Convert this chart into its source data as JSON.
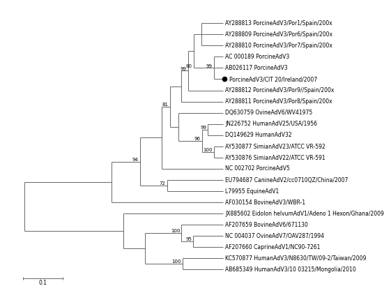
{
  "line_color": "#666666",
  "text_color": "#000000",
  "bg_color": "#ffffff",
  "font_size": 5.5,
  "bootstrap_font_size": 5.0,
  "taxa": [
    "AY288813 PorcineAdV3/Por1/Spain/200x",
    "AY288809 PorcineAdV3/Por6/Spain/200x",
    "AY288810 PorcineAdV3/Por7/Spain/200x",
    "AC 000189 PorcineAdV3",
    "AB026117 PorcineAdV3",
    "PorcineAdV3/CIT 20/Ireland/2007",
    "AY288812 PorcineAdV3/Por9//Spain/200x",
    "AY288811 PorcineAdV3/Por8/Spain/200x",
    "DQ630759 OvineAdV6/WV41975",
    "JN226752 HumanAdV25/USA/1956",
    "DQ149629 HumanAdV32",
    "AY530877 SimianAdV23/ATCC VR-592",
    "AY530876 SimianAdV22/ATCC VR-591",
    "NC 002702 PorcineAdV5",
    "EU794687 CanineAdV2/cc0710QZ/China/2007",
    "L79955 EquineAdV1",
    "AF030154 BovineAdV3/WBR-1",
    "JX885602 Eidolon helvumAdV1/Adeno 1 Hexon/Ghana/2009",
    "AF207659 BovineAdV6/671130",
    "NC 004037 OvineAdV7/OAV287/1994",
    "AF207660 CaprineAdV1/NC90-7261",
    "KC570877 HumanAdV3/N8630/TW/09-2/Taiwan/2009",
    "AB685349 HumanAdV3/10 03215/Mongolia/2010"
  ]
}
